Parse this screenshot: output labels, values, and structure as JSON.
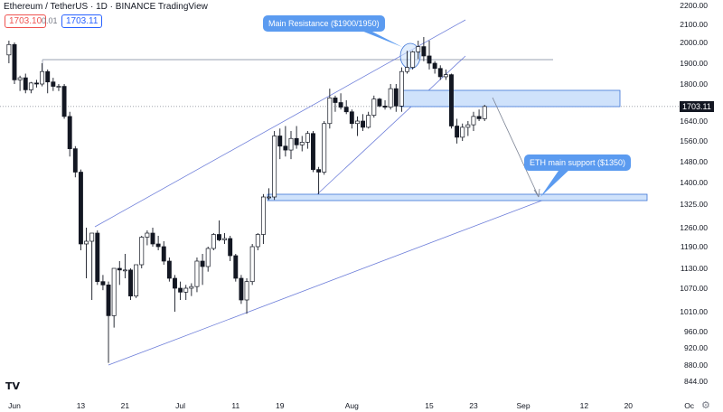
{
  "header": {
    "symbol": "Ethereum / TetherUS",
    "interval": "1D",
    "exchange": "BINANCE",
    "platform": "TradingView",
    "bid": "1703.10",
    "spread": "0.01",
    "ask": "1703.11"
  },
  "logo_text": "TV",
  "chart_data": {
    "type": "candlestick",
    "y_axis_ticks": [
      "2200.00",
      "2100.00",
      "2000.00",
      "1900.00",
      "1800.00",
      "1640.00",
      "1560.00",
      "1480.00",
      "1400.00",
      "1325.00",
      "1260.00",
      "1190.00",
      "1130.00",
      "1070.00",
      "1010.00",
      "960.00",
      "920.00",
      "880.00",
      "844.00"
    ],
    "current_price": "1703.11",
    "x_axis_ticks": [
      "Jun",
      "13",
      "21",
      "Jul",
      "11",
      "19",
      "Aug",
      "15",
      "23",
      "Sep",
      "12",
      "20",
      "Oc"
    ],
    "ylim": [
      844,
      2200
    ],
    "candles": [
      {
        "date": "2022-05-31",
        "open": 1940,
        "high": 2010,
        "low": 1900,
        "close": 1990
      },
      {
        "date": "2022-06-01",
        "open": 1990,
        "high": 2000,
        "low": 1800,
        "close": 1820
      },
      {
        "date": "2022-06-02",
        "open": 1820,
        "high": 1840,
        "low": 1770,
        "close": 1830
      },
      {
        "date": "2022-06-03",
        "open": 1830,
        "high": 1850,
        "low": 1760,
        "close": 1775
      },
      {
        "date": "2022-06-04",
        "open": 1775,
        "high": 1810,
        "low": 1760,
        "close": 1805
      },
      {
        "date": "2022-06-05",
        "open": 1805,
        "high": 1820,
        "low": 1785,
        "close": 1800
      },
      {
        "date": "2022-06-06",
        "open": 1800,
        "high": 1900,
        "low": 1790,
        "close": 1860
      },
      {
        "date": "2022-06-07",
        "open": 1860,
        "high": 1870,
        "low": 1760,
        "close": 1810
      },
      {
        "date": "2022-06-08",
        "open": 1810,
        "high": 1830,
        "low": 1770,
        "close": 1790
      },
      {
        "date": "2022-06-09",
        "open": 1790,
        "high": 1800,
        "low": 1770,
        "close": 1790
      },
      {
        "date": "2022-06-10",
        "open": 1790,
        "high": 1800,
        "low": 1650,
        "close": 1660
      },
      {
        "date": "2022-06-11",
        "open": 1660,
        "high": 1680,
        "low": 1500,
        "close": 1530
      },
      {
        "date": "2022-06-12",
        "open": 1530,
        "high": 1540,
        "low": 1420,
        "close": 1440
      },
      {
        "date": "2022-06-13",
        "open": 1440,
        "high": 1450,
        "low": 1180,
        "close": 1200
      },
      {
        "date": "2022-06-14",
        "open": 1200,
        "high": 1260,
        "low": 1100,
        "close": 1210
      },
      {
        "date": "2022-06-15",
        "open": 1210,
        "high": 1240,
        "low": 1040,
        "close": 1240
      },
      {
        "date": "2022-06-16",
        "open": 1240,
        "high": 1250,
        "low": 1080,
        "close": 1090
      },
      {
        "date": "2022-06-17",
        "open": 1090,
        "high": 1110,
        "low": 1065,
        "close": 1080
      },
      {
        "date": "2022-06-18",
        "open": 1080,
        "high": 1090,
        "low": 885,
        "close": 1000
      },
      {
        "date": "2022-06-19",
        "open": 1000,
        "high": 1130,
        "low": 970,
        "close": 1130
      },
      {
        "date": "2022-06-20",
        "open": 1130,
        "high": 1150,
        "low": 1080,
        "close": 1125
      },
      {
        "date": "2022-06-21",
        "open": 1125,
        "high": 1170,
        "low": 1100,
        "close": 1125
      },
      {
        "date": "2022-06-22",
        "open": 1125,
        "high": 1130,
        "low": 1040,
        "close": 1050
      },
      {
        "date": "2022-06-23",
        "open": 1050,
        "high": 1140,
        "low": 1045,
        "close": 1140
      },
      {
        "date": "2022-06-24",
        "open": 1140,
        "high": 1230,
        "low": 1130,
        "close": 1225
      },
      {
        "date": "2022-06-25",
        "open": 1225,
        "high": 1250,
        "low": 1195,
        "close": 1240
      },
      {
        "date": "2022-06-26",
        "open": 1240,
        "high": 1260,
        "low": 1190,
        "close": 1200
      },
      {
        "date": "2022-06-27",
        "open": 1200,
        "high": 1230,
        "low": 1180,
        "close": 1190
      },
      {
        "date": "2022-06-28",
        "open": 1190,
        "high": 1210,
        "low": 1140,
        "close": 1150
      },
      {
        "date": "2022-06-29",
        "open": 1150,
        "high": 1160,
        "low": 1090,
        "close": 1100
      },
      {
        "date": "2022-06-30",
        "open": 1100,
        "high": 1110,
        "low": 1010,
        "close": 1070
      },
      {
        "date": "2022-07-01",
        "open": 1070,
        "high": 1090,
        "low": 1040,
        "close": 1060
      },
      {
        "date": "2022-07-02",
        "open": 1060,
        "high": 1080,
        "low": 1040,
        "close": 1070
      },
      {
        "date": "2022-07-03",
        "open": 1070,
        "high": 1085,
        "low": 1050,
        "close": 1075
      },
      {
        "date": "2022-07-04",
        "open": 1075,
        "high": 1160,
        "low": 1060,
        "close": 1150
      },
      {
        "date": "2022-07-05",
        "open": 1150,
        "high": 1170,
        "low": 1080,
        "close": 1135
      },
      {
        "date": "2022-07-06",
        "open": 1135,
        "high": 1190,
        "low": 1120,
        "close": 1185
      },
      {
        "date": "2022-07-07",
        "open": 1185,
        "high": 1240,
        "low": 1180,
        "close": 1235
      },
      {
        "date": "2022-07-08",
        "open": 1235,
        "high": 1280,
        "low": 1210,
        "close": 1215
      },
      {
        "date": "2022-07-09",
        "open": 1215,
        "high": 1240,
        "low": 1200,
        "close": 1220
      },
      {
        "date": "2022-07-10",
        "open": 1220,
        "high": 1230,
        "low": 1150,
        "close": 1165
      },
      {
        "date": "2022-07-11",
        "open": 1165,
        "high": 1170,
        "low": 1090,
        "close": 1100
      },
      {
        "date": "2022-07-12",
        "open": 1100,
        "high": 1110,
        "low": 1030,
        "close": 1040
      },
      {
        "date": "2022-07-13",
        "open": 1040,
        "high": 1100,
        "low": 1005,
        "close": 1090
      },
      {
        "date": "2022-07-14",
        "open": 1090,
        "high": 1200,
        "low": 1080,
        "close": 1190
      },
      {
        "date": "2022-07-15",
        "open": 1190,
        "high": 1240,
        "low": 1180,
        "close": 1235
      },
      {
        "date": "2022-07-16",
        "open": 1235,
        "high": 1360,
        "low": 1200,
        "close": 1350
      },
      {
        "date": "2022-07-17",
        "open": 1350,
        "high": 1380,
        "low": 1340,
        "close": 1350
      },
      {
        "date": "2022-07-18",
        "open": 1350,
        "high": 1600,
        "low": 1340,
        "close": 1580
      },
      {
        "date": "2022-07-19",
        "open": 1580,
        "high": 1610,
        "low": 1490,
        "close": 1540
      },
      {
        "date": "2022-07-20",
        "open": 1540,
        "high": 1620,
        "low": 1500,
        "close": 1525
      },
      {
        "date": "2022-07-21",
        "open": 1525,
        "high": 1600,
        "low": 1490,
        "close": 1570
      },
      {
        "date": "2022-07-22",
        "open": 1570,
        "high": 1620,
        "low": 1530,
        "close": 1545
      },
      {
        "date": "2022-07-23",
        "open": 1545,
        "high": 1580,
        "low": 1520,
        "close": 1555
      },
      {
        "date": "2022-07-24",
        "open": 1555,
        "high": 1600,
        "low": 1530,
        "close": 1590
      },
      {
        "date": "2022-07-25",
        "open": 1590,
        "high": 1600,
        "low": 1440,
        "close": 1450
      },
      {
        "date": "2022-07-26",
        "open": 1450,
        "high": 1460,
        "low": 1360,
        "close": 1440
      },
      {
        "date": "2022-07-27",
        "open": 1440,
        "high": 1640,
        "low": 1430,
        "close": 1630
      },
      {
        "date": "2022-07-28",
        "open": 1630,
        "high": 1780,
        "low": 1610,
        "close": 1740
      },
      {
        "date": "2022-07-29",
        "open": 1740,
        "high": 1750,
        "low": 1680,
        "close": 1720
      },
      {
        "date": "2022-07-30",
        "open": 1720,
        "high": 1760,
        "low": 1690,
        "close": 1700
      },
      {
        "date": "2022-07-31",
        "open": 1700,
        "high": 1730,
        "low": 1670,
        "close": 1680
      },
      {
        "date": "2022-08-01",
        "open": 1680,
        "high": 1690,
        "low": 1610,
        "close": 1630
      },
      {
        "date": "2022-08-02",
        "open": 1630,
        "high": 1660,
        "low": 1580,
        "close": 1640
      },
      {
        "date": "2022-08-03",
        "open": 1640,
        "high": 1670,
        "low": 1600,
        "close": 1615
      },
      {
        "date": "2022-08-04",
        "open": 1615,
        "high": 1680,
        "low": 1610,
        "close": 1665
      },
      {
        "date": "2022-08-05",
        "open": 1665,
        "high": 1750,
        "low": 1655,
        "close": 1735
      },
      {
        "date": "2022-08-06",
        "open": 1735,
        "high": 1740,
        "low": 1700,
        "close": 1705
      },
      {
        "date": "2022-08-07",
        "open": 1705,
        "high": 1730,
        "low": 1690,
        "close": 1700
      },
      {
        "date": "2022-08-08",
        "open": 1700,
        "high": 1800,
        "low": 1690,
        "close": 1780
      },
      {
        "date": "2022-08-09",
        "open": 1780,
        "high": 1800,
        "low": 1680,
        "close": 1705
      },
      {
        "date": "2022-08-10",
        "open": 1705,
        "high": 1880,
        "low": 1680,
        "close": 1860
      },
      {
        "date": "2022-08-11",
        "open": 1860,
        "high": 1960,
        "low": 1850,
        "close": 1880
      },
      {
        "date": "2022-08-12",
        "open": 1880,
        "high": 1960,
        "low": 1870,
        "close": 1955
      },
      {
        "date": "2022-08-13",
        "open": 1955,
        "high": 2010,
        "low": 1920,
        "close": 1980
      },
      {
        "date": "2022-08-14",
        "open": 1980,
        "high": 2030,
        "low": 1910,
        "close": 1935
      },
      {
        "date": "2022-08-15",
        "open": 1935,
        "high": 2010,
        "low": 1870,
        "close": 1900
      },
      {
        "date": "2022-08-16",
        "open": 1900,
        "high": 1910,
        "low": 1850,
        "close": 1875
      },
      {
        "date": "2022-08-17",
        "open": 1875,
        "high": 1890,
        "low": 1820,
        "close": 1835
      },
      {
        "date": "2022-08-18",
        "open": 1835,
        "high": 1870,
        "low": 1820,
        "close": 1845
      },
      {
        "date": "2022-08-19",
        "open": 1845,
        "high": 1850,
        "low": 1610,
        "close": 1620
      },
      {
        "date": "2022-08-20",
        "open": 1620,
        "high": 1650,
        "low": 1550,
        "close": 1575
      },
      {
        "date": "2022-08-21",
        "open": 1575,
        "high": 1630,
        "low": 1560,
        "close": 1615
      },
      {
        "date": "2022-08-22",
        "open": 1615,
        "high": 1640,
        "low": 1580,
        "close": 1625
      },
      {
        "date": "2022-08-23",
        "open": 1625,
        "high": 1680,
        "low": 1600,
        "close": 1660
      },
      {
        "date": "2022-08-24",
        "open": 1660,
        "high": 1690,
        "low": 1640,
        "close": 1650
      },
      {
        "date": "2022-08-25",
        "open": 1650,
        "high": 1710,
        "low": 1640,
        "close": 1703
      }
    ],
    "annotations": [
      {
        "text": "Main Resistance ($1900/1950)"
      },
      {
        "text": "ETH main support ($1350)"
      }
    ],
    "colors": {
      "up": "#131722",
      "down": "#131722",
      "up_fill": "#ffffff",
      "line": "#4a5fd0",
      "zone": "#cfe2fb",
      "zone_border": "#3d74d6",
      "callout": "#5b9bf0"
    }
  }
}
